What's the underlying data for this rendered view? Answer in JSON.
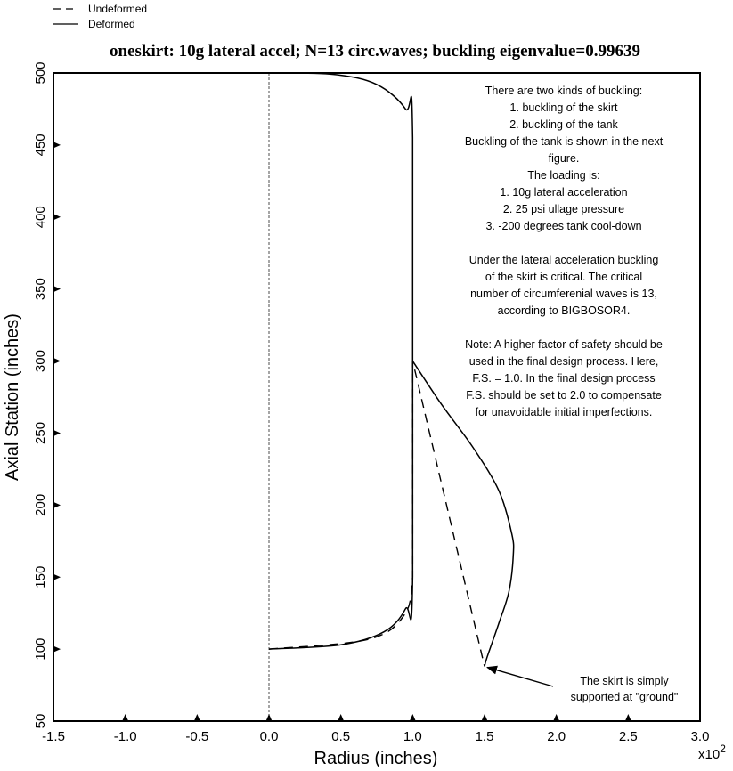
{
  "chart_data": {
    "type": "line",
    "title": "oneskirt: 10g lateral accel; N=13 circ.waves; buckling eigenvalue=0.99639",
    "xlabel": "Radius (inches)",
    "ylabel": "Axial Station (inches)",
    "x_multiplier": "x10",
    "x_multiplier_exp": "2",
    "xlim": [
      -1.5,
      3.0
    ],
    "ylim": [
      50,
      500
    ],
    "x_ticks": [
      "-1.5",
      "-1.0",
      "-0.5",
      "0.0",
      "0.5",
      "1.0",
      "1.5",
      "2.0",
      "2.5",
      "3.0"
    ],
    "y_ticks": [
      "50",
      "100",
      "150",
      "200",
      "250",
      "300",
      "350",
      "400",
      "450",
      "500"
    ],
    "x_tick_values": [
      -1.5,
      -1.0,
      -0.5,
      0.0,
      0.5,
      1.0,
      1.5,
      2.0,
      2.5,
      3.0
    ],
    "y_tick_values": [
      50,
      100,
      150,
      200,
      250,
      300,
      350,
      400,
      450,
      500
    ],
    "legend": [
      {
        "label": "Undeformed",
        "style": "dashed"
      },
      {
        "label": "Deformed",
        "style": "solid"
      }
    ],
    "series": [
      {
        "name": "Undeformed",
        "style": "dashed",
        "points": [
          [
            0.0,
            100
          ],
          [
            0.7,
            107
          ],
          [
            0.95,
            125
          ],
          [
            1.0,
            150
          ],
          [
            1.0,
            300
          ],
          [
            1.5,
            88
          ]
        ]
      },
      {
        "name": "Deformed",
        "style": "solid",
        "points": [
          [
            0.0,
            100
          ],
          [
            0.5,
            103
          ],
          [
            0.8,
            112
          ],
          [
            0.95,
            128
          ],
          [
            1.0,
            150
          ],
          [
            1.0,
            455
          ],
          [
            0.95,
            475
          ],
          [
            0.75,
            492
          ],
          [
            0.45,
            499
          ],
          [
            0.0,
            500
          ]
        ]
      },
      {
        "name": "Deformed",
        "style": "solid",
        "points": [
          [
            1.0,
            300
          ],
          [
            1.2,
            270
          ],
          [
            1.42,
            240
          ],
          [
            1.6,
            210
          ],
          [
            1.69,
            180
          ],
          [
            1.7,
            165
          ],
          [
            1.67,
            140
          ],
          [
            1.6,
            118
          ],
          [
            1.52,
            95
          ],
          [
            1.5,
            88
          ]
        ]
      }
    ],
    "axis_line": {
      "x": 0.0,
      "style": "dashed-thin"
    },
    "bottom_markers_x": [
      -1.0,
      -0.5,
      0.0,
      0.5,
      1.0,
      1.5,
      2.0,
      2.5
    ],
    "left_markers_y": [
      100,
      150,
      200,
      250,
      300,
      350,
      400,
      450
    ],
    "annotation_lines": [
      "There are two kinds of buckling:",
      "1. buckling of the skirt",
      "2. buckling of the tank",
      "Buckling of the tank is shown in the next",
      "figure.",
      "The loading is:",
      "1. 10g lateral acceleration",
      "2.  25 psi ullage pressure",
      "3. -200 degrees tank cool-down",
      "",
      "Under the lateral acceleration buckling",
      "of the skirt is critical. The critical",
      "number of circumferenial waves is 13,",
      "according to BIGBOSOR4.",
      "",
      "Note: A higher factor of safety should be",
      "used in the final design process. Here,",
      "F.S. = 1.0. In the final design process",
      "F.S. should be set to 2.0 to compensate",
      "for unavoidable initial imperfections."
    ],
    "arrow_note_lines": [
      "The skirt is simply",
      "supported at \"ground\""
    ],
    "arrow_target": [
      1.5,
      88
    ]
  }
}
